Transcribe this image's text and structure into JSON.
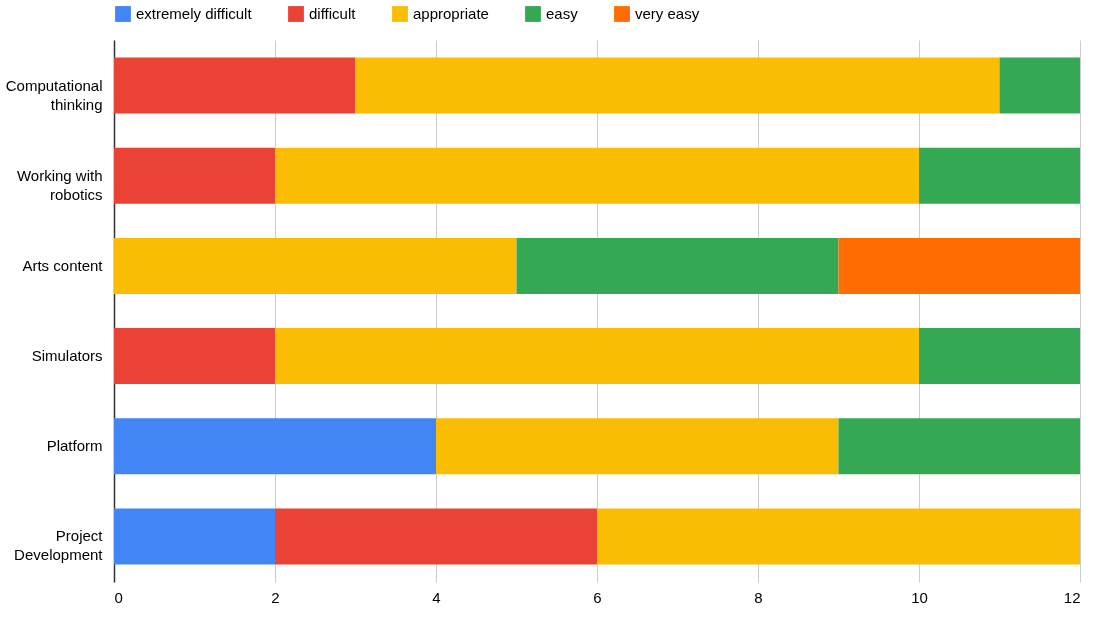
{
  "chart_data": {
    "type": "bar",
    "orientation": "horizontal",
    "stacked": true,
    "categories": [
      "Computational\nthinking",
      "Working with\nrobotics",
      "Arts content",
      "Simulators",
      "Platform",
      "Project\nDevelopment"
    ],
    "series": [
      {
        "name": "extremely difficult",
        "color": "#4285f4",
        "values": [
          null,
          null,
          null,
          null,
          4,
          2
        ]
      },
      {
        "name": "difficult",
        "color": "#ea4335",
        "values": [
          3,
          2,
          null,
          2,
          null,
          4
        ]
      },
      {
        "name": "appropriate",
        "color": "#fbbc04",
        "values": [
          8,
          8,
          5,
          8,
          5,
          6
        ]
      },
      {
        "name": "easy",
        "color": "#34a853",
        "values": [
          1,
          2,
          4,
          2,
          3,
          null
        ]
      },
      {
        "name": "very easy",
        "color": "#ff6d01",
        "values": [
          null,
          null,
          3,
          null,
          null,
          null
        ]
      }
    ],
    "xlim": [
      0,
      12
    ],
    "xticks": [
      0,
      2,
      4,
      6,
      8,
      10,
      12
    ],
    "grid": "x",
    "legend": "top"
  }
}
